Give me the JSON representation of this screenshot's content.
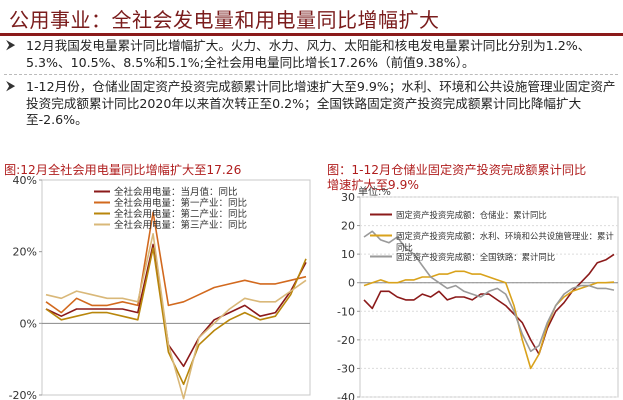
{
  "header": {
    "title": "公用事业：全社会发电量和用电量同比增幅扩大"
  },
  "bullets": [
    {
      "icon": "arrow-bullet-icon",
      "text": "12月我国发电量累计同比增幅扩大。火力、水力、风力、太阳能和核电发电量累计同比分别为1.2%、5.3%、10.5%、8.5%和5.1%;全社会用电量同比增长17.26%（前值9.38%）。"
    },
    {
      "icon": "arrow-bullet-icon",
      "text": "1-12月份，仓储业固定资产投资完成额累计同比增速扩大至9.9%；水利、环境和公共设施管理业固定资产投资完成额累计同比2020年以来首次转正至0.2%；全国铁路固定资产投资完成额累计同比降幅扩大至-2.6%。"
    }
  ],
  "captions": {
    "left": "图:12月全社会用电量同比增幅扩大至17.26",
    "right_line1": "图：1-12月仓储业固定资产投资完成额累计同比",
    "right_line2": "增速扩大至9.9%"
  },
  "chart_data": [
    {
      "type": "line",
      "ylim": [
        -20,
        40
      ],
      "yticks": [
        "40%",
        "20%",
        "0%",
        "-20%"
      ],
      "ytick_values": [
        40,
        20,
        0,
        -20
      ],
      "grid": false,
      "legend_placement": "top-left",
      "series": [
        {
          "name": "全社会用电量：当月值：同比",
          "color": "#8b1a1a",
          "values": [
            4,
            2,
            4,
            4,
            4,
            4,
            3,
            22,
            -6,
            -12,
            -4,
            1,
            3,
            5,
            2,
            3,
            9,
            17
          ]
        },
        {
          "name": "全社会用电量：第一产业：同比",
          "color": "#d2691e",
          "values": [
            6,
            3,
            7,
            5,
            5,
            6,
            5,
            31,
            5,
            6,
            8,
            10,
            11,
            12,
            11,
            11,
            12,
            13
          ]
        },
        {
          "name": "全社会用电量：第二产业：同比",
          "color": "#b8860b",
          "values": [
            4,
            1,
            2,
            3,
            3,
            2,
            1,
            21,
            -8,
            -17,
            -6,
            -2,
            1,
            3,
            1,
            2,
            8,
            18
          ]
        },
        {
          "name": "全社会用电量：第三产业：同比",
          "color": "#d9b879",
          "values": [
            8,
            7,
            9,
            8,
            7,
            7,
            6,
            25,
            -6,
            -21,
            -4,
            0,
            4,
            7,
            6,
            6,
            9,
            12
          ]
        }
      ]
    },
    {
      "type": "line",
      "unit_label": "单位:%",
      "ylim": [
        -40,
        30
      ],
      "yticks": [
        "30",
        "20",
        "10",
        "0",
        "-10",
        "-20",
        "-30",
        "-40"
      ],
      "ytick_values": [
        30,
        20,
        10,
        0,
        -10,
        -20,
        -30,
        -40
      ],
      "grid": true,
      "legend_placement": "top",
      "series": [
        {
          "name": "固定资产投资完成额：仓储业：累计同比",
          "color": "#8b1a1a",
          "values": [
            -6,
            -9,
            -3,
            -3,
            -5,
            -6,
            -6,
            -4,
            -5,
            -3,
            -6,
            -5,
            -5,
            -6,
            -4,
            -4,
            -6,
            -8,
            -11,
            -14,
            -20,
            -25,
            -16,
            -10,
            -7,
            -3,
            0,
            3,
            7,
            8,
            9.9
          ]
        },
        {
          "name": "固定资产投资完成额：水利、环境和公共设施管理业：累计同比",
          "color": "#d9a21b",
          "values": [
            -1,
            0,
            1,
            0,
            0,
            1,
            1,
            2,
            2,
            3,
            3,
            4,
            4,
            3,
            3,
            2,
            1,
            0,
            -8,
            -20,
            -30,
            -25,
            -15,
            -8,
            -5,
            -3,
            -2,
            -1,
            0,
            0,
            0.2
          ]
        },
        {
          "name": "固定资产投资完成额：全国铁路：累计同比",
          "color": "#9a9a9a",
          "values": [
            16,
            18,
            15,
            14,
            16,
            12,
            10,
            6,
            2,
            0,
            -2,
            -1,
            -3,
            -4,
            -5,
            -3,
            -2,
            -4,
            -10,
            -18,
            -24,
            -22,
            -14,
            -8,
            -4,
            -2,
            -1,
            -1,
            -2,
            -2,
            -2.6
          ]
        }
      ]
    }
  ]
}
